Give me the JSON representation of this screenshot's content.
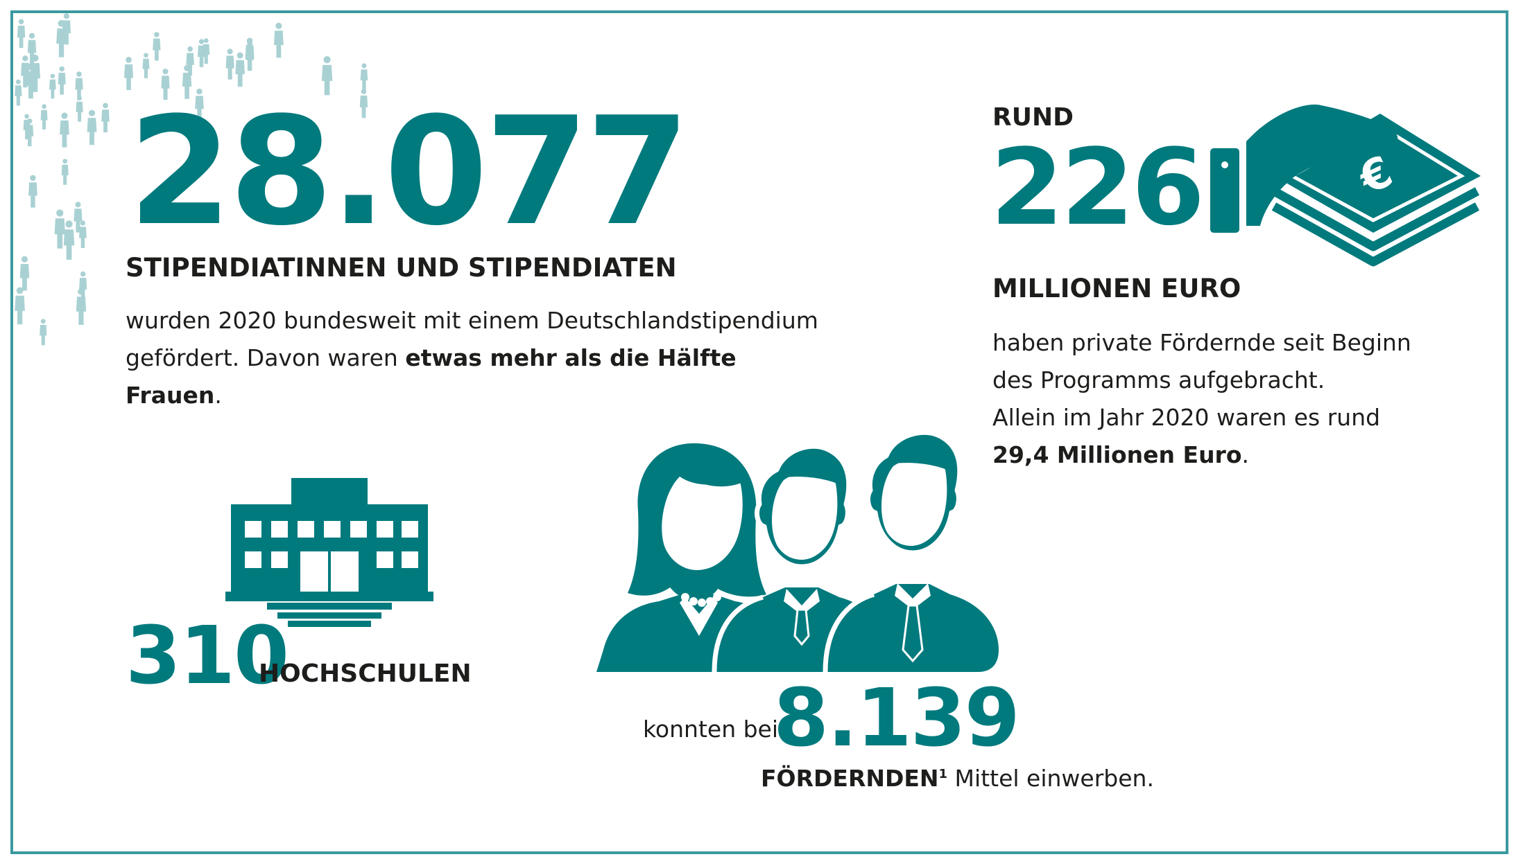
{
  "students": {
    "number": "28.077",
    "heading": "STIPENDIATINNEN UND STIPENDIATEN",
    "line1": "wurden 2020 bundesweit mit einem Deutschlandstipendium",
    "line2_a": "gefördert. Davon waren ",
    "line2_bold": "etwas mehr als die Hälfte Frauen",
    "line2_end": "."
  },
  "euro": {
    "prefix": "RUND",
    "number": "226",
    "heading": "MILLIONEN EURO",
    "line1": "haben private Fördernde seit Beginn",
    "line2": "des Programms aufgebracht.",
    "line3": "Allein im Jahr 2020 waren es rund",
    "line4_bold": "29,4 Millionen Euro",
    "line4_end": ".",
    "icon": "money-hand-icon"
  },
  "universities": {
    "number": "310",
    "label": "HOCHSCHULEN",
    "icon": "university-building-icon"
  },
  "funders": {
    "prefix": "konnten bei",
    "number": "8.139",
    "label_bold": "FÖRDERNDEN",
    "footnote": "1",
    "suffix": " Mittel einwerben.",
    "icon": "people-group-icon"
  },
  "colors": {
    "accent": "#007a7d",
    "frame": "#3b9aa0",
    "crowd": "#a9d1d3",
    "text": "#1d1d1b"
  }
}
